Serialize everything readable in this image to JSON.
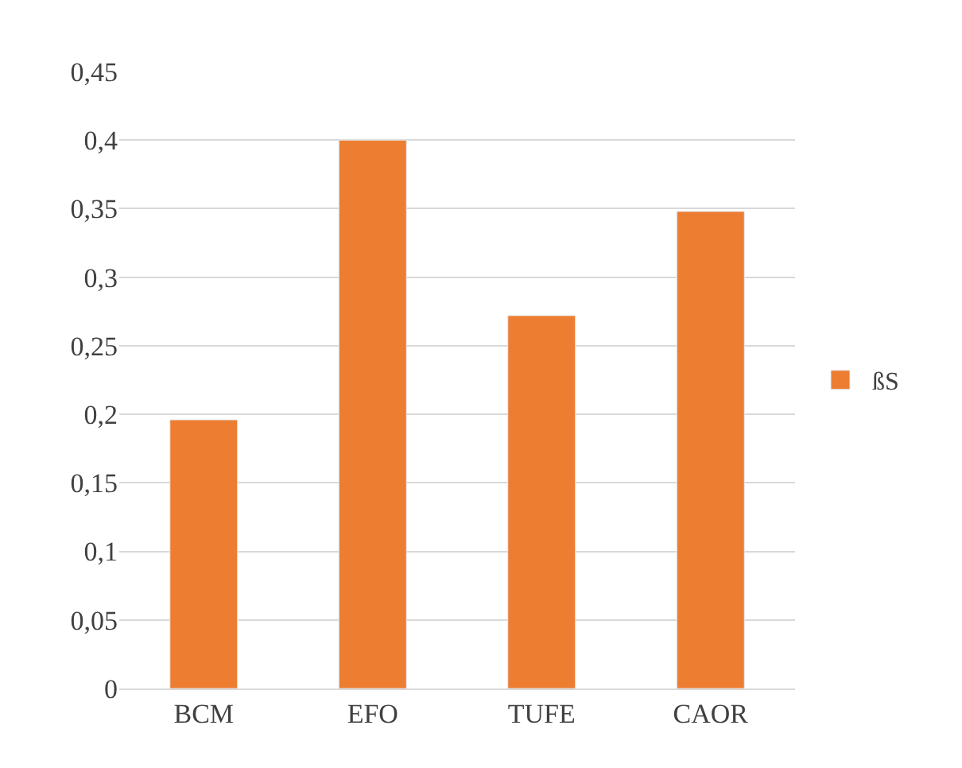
{
  "chart_data": {
    "type": "bar",
    "categories": [
      "BCM",
      "EFO",
      "TUFE",
      "CAOR"
    ],
    "series": [
      {
        "name": "ßS",
        "color": "#ed7d31",
        "values": [
          0.196,
          0.4,
          0.272,
          0.348
        ]
      }
    ],
    "ylim": [
      0,
      0.45
    ],
    "yticks": [
      {
        "value": 0,
        "label": "0"
      },
      {
        "value": 0.05,
        "label": "0,05"
      },
      {
        "value": 0.1,
        "label": "0,1"
      },
      {
        "value": 0.15,
        "label": "0,15"
      },
      {
        "value": 0.2,
        "label": "0,2"
      },
      {
        "value": 0.25,
        "label": "0,25"
      },
      {
        "value": 0.3,
        "label": "0,3"
      },
      {
        "value": 0.35,
        "label": "0,35"
      },
      {
        "value": 0.4,
        "label": "0,4"
      },
      {
        "value": 0.45,
        "label": "0,45"
      }
    ],
    "grid": "y",
    "legend": "right"
  }
}
